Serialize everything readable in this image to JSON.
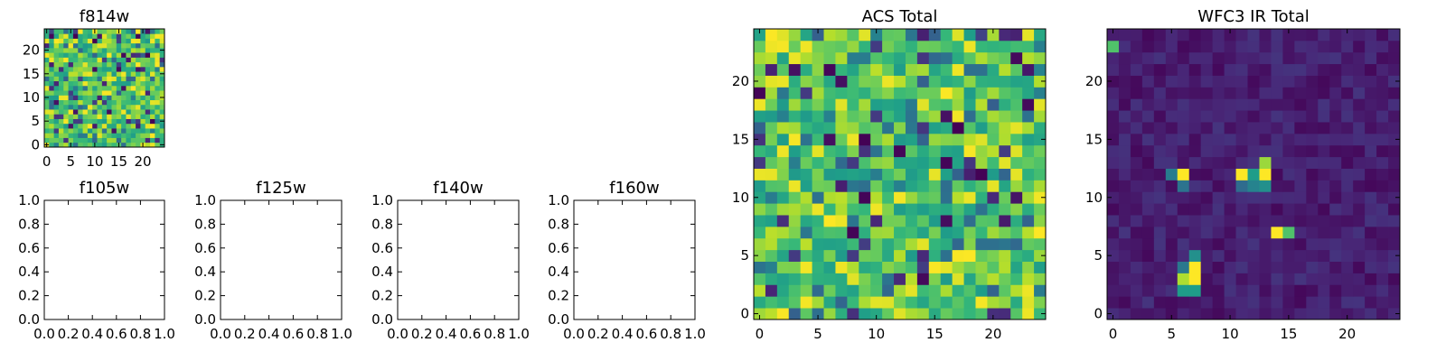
{
  "chart_data": [
    {
      "type": "heatmap",
      "title": "f814w",
      "xlim": [
        -0.5,
        24.5
      ],
      "ylim": [
        -0.5,
        24.5
      ],
      "xticks": [
        0,
        5,
        10,
        15,
        20
      ],
      "xtick_labels": [
        "0",
        "5",
        "10",
        "15",
        "20"
      ],
      "yticks": [
        0,
        5,
        10,
        15,
        20
      ],
      "ytick_labels": [
        "0",
        "5",
        "10",
        "15",
        "20"
      ],
      "grid": false,
      "colormap": "viridis",
      "grid_size": [
        25,
        25
      ],
      "pattern": "noise",
      "seed": 7
    },
    {
      "type": "empty",
      "title": "f105w",
      "xlim": [
        0,
        1
      ],
      "ylim": [
        0,
        1
      ],
      "xticks": [
        0,
        0.2,
        0.4,
        0.6,
        0.8,
        1.0
      ],
      "xtick_labels": [
        "0.0",
        "0.2",
        "0.4",
        "0.6",
        "0.8",
        "1.0"
      ],
      "yticks": [
        0,
        0.2,
        0.4,
        0.6,
        0.8,
        1.0
      ],
      "ytick_labels": [
        "0.0",
        "0.2",
        "0.4",
        "0.6",
        "0.8",
        "1.0"
      ],
      "grid": false
    },
    {
      "type": "empty",
      "title": "f125w",
      "xlim": [
        0,
        1
      ],
      "ylim": [
        0,
        1
      ],
      "xticks": [
        0,
        0.2,
        0.4,
        0.6,
        0.8,
        1.0
      ],
      "xtick_labels": [
        "0.0",
        "0.2",
        "0.4",
        "0.6",
        "0.8",
        "1.0"
      ],
      "yticks": [
        0,
        0.2,
        0.4,
        0.6,
        0.8,
        1.0
      ],
      "ytick_labels": [
        "0.0",
        "0.2",
        "0.4",
        "0.6",
        "0.8",
        "1.0"
      ],
      "grid": false
    },
    {
      "type": "empty",
      "title": "f140w",
      "xlim": [
        0,
        1
      ],
      "ylim": [
        0,
        1
      ],
      "xticks": [
        0,
        0.2,
        0.4,
        0.6,
        0.8,
        1.0
      ],
      "xtick_labels": [
        "0.0",
        "0.2",
        "0.4",
        "0.6",
        "0.8",
        "1.0"
      ],
      "yticks": [
        0,
        0.2,
        0.4,
        0.6,
        0.8,
        1.0
      ],
      "ytick_labels": [
        "0.0",
        "0.2",
        "0.4",
        "0.6",
        "0.8",
        "1.0"
      ],
      "grid": false
    },
    {
      "type": "empty",
      "title": "f160w",
      "xlim": [
        0,
        1
      ],
      "ylim": [
        0,
        1
      ],
      "xticks": [
        0,
        0.2,
        0.4,
        0.6,
        0.8,
        1.0
      ],
      "xtick_labels": [
        "0.0",
        "0.2",
        "0.4",
        "0.6",
        "0.8",
        "1.0"
      ],
      "yticks": [
        0,
        0.2,
        0.4,
        0.6,
        0.8,
        1.0
      ],
      "ytick_labels": [
        "0.0",
        "0.2",
        "0.4",
        "0.6",
        "0.8",
        "1.0"
      ],
      "grid": false
    },
    {
      "type": "heatmap",
      "title": "ACS Total",
      "xlim": [
        -0.5,
        24.5
      ],
      "ylim": [
        -0.5,
        24.5
      ],
      "xticks": [
        0,
        5,
        10,
        15,
        20
      ],
      "xtick_labels": [
        "0",
        "5",
        "10",
        "15",
        "20"
      ],
      "yticks": [
        0,
        5,
        10,
        15,
        20
      ],
      "ytick_labels": [
        "0",
        "5",
        "10",
        "15",
        "20"
      ],
      "grid": false,
      "colormap": "viridis",
      "grid_size": [
        25,
        25
      ],
      "pattern": "noise",
      "seed": 31
    },
    {
      "type": "heatmap",
      "title": "WFC3 IR Total",
      "xlim": [
        -0.5,
        24.5
      ],
      "ylim": [
        -0.5,
        24.5
      ],
      "xticks": [
        0,
        5,
        10,
        15,
        20
      ],
      "xtick_labels": [
        "0",
        "5",
        "10",
        "15",
        "20"
      ],
      "yticks": [
        0,
        5,
        10,
        15,
        20
      ],
      "ytick_labels": [
        "0",
        "5",
        "10",
        "15",
        "20"
      ],
      "grid": false,
      "colormap": "viridis",
      "grid_size": [
        25,
        25
      ],
      "pattern": "sparse",
      "seed": 101,
      "bright_pixels": [
        {
          "x": 0,
          "y": 23,
          "value": 0.72
        },
        {
          "x": 6,
          "y": 12,
          "value": 1.0
        },
        {
          "x": 5,
          "y": 12,
          "value": 0.42
        },
        {
          "x": 6,
          "y": 11,
          "value": 0.38
        },
        {
          "x": 11,
          "y": 12,
          "value": 1.0
        },
        {
          "x": 12,
          "y": 12,
          "value": 0.55
        },
        {
          "x": 13,
          "y": 12,
          "value": 1.0
        },
        {
          "x": 13,
          "y": 13,
          "value": 0.85
        },
        {
          "x": 11,
          "y": 11,
          "value": 0.35
        },
        {
          "x": 12,
          "y": 11,
          "value": 0.45
        },
        {
          "x": 13,
          "y": 11,
          "value": 0.5
        },
        {
          "x": 14,
          "y": 7,
          "value": 1.0
        },
        {
          "x": 15,
          "y": 7,
          "value": 0.72
        },
        {
          "x": 7,
          "y": 4,
          "value": 1.0
        },
        {
          "x": 7,
          "y": 3,
          "value": 1.0
        },
        {
          "x": 6,
          "y": 3,
          "value": 0.88
        },
        {
          "x": 6,
          "y": 2,
          "value": 0.55
        },
        {
          "x": 7,
          "y": 2,
          "value": 0.55
        },
        {
          "x": 7,
          "y": 5,
          "value": 0.5
        },
        {
          "x": 6,
          "y": 4,
          "value": 0.4
        }
      ]
    }
  ]
}
